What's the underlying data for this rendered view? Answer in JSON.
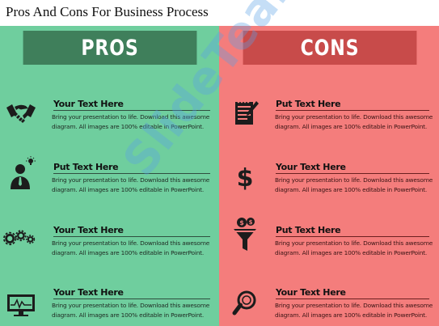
{
  "title": "Pros And Cons For Business Process",
  "pros": {
    "header": "PROS",
    "items": [
      {
        "icon": "handshake-icon",
        "title": "Your Text Here",
        "body": "Bring your presentation to life. Download this awesome diagram. All images are 100% editable in PowerPoint."
      },
      {
        "icon": "person-idea-icon",
        "title": "Put Text Here",
        "body": "Bring your presentation to life. Download this awesome diagram. All images are 100% editable in PowerPoint."
      },
      {
        "icon": "gears-icon",
        "title": "Your Text Here",
        "body": "Bring your presentation to life. Download this awesome diagram. All images are 100% editable in PowerPoint."
      },
      {
        "icon": "monitor-chart-icon",
        "title": "Your Text Here",
        "body": "Bring your presentation to life. Download this awesome diagram. All images are 100% editable in PowerPoint."
      }
    ]
  },
  "cons": {
    "header": "CONS",
    "items": [
      {
        "icon": "notepad-pen-icon",
        "title": "Put Text Here",
        "body": "Bring your presentation to life. Download this awesome diagram. All images are 100% editable in PowerPoint."
      },
      {
        "icon": "dollar-icon",
        "title": "Your Text Here",
        "body": "Bring your presentation to life. Download this awesome diagram. All images are 100% editable in PowerPoint."
      },
      {
        "icon": "money-funnel-icon",
        "title": "Put Text Here",
        "body": "Bring your presentation to life. Download this awesome diagram. All images are 100% editable in PowerPoint."
      },
      {
        "icon": "magnifier-icon",
        "title": "Your Text Here",
        "body": "Bring your presentation to life. Download this awesome diagram. All images are 100% editable in PowerPoint."
      }
    ]
  },
  "watermark": "SlideTeam.net",
  "colors": {
    "pros_bg": "#6fce9e",
    "pros_header": "#3f7f5b",
    "cons_bg": "#f47d7c",
    "cons_header": "#c84b4a",
    "icon": "#1c1c1c"
  }
}
